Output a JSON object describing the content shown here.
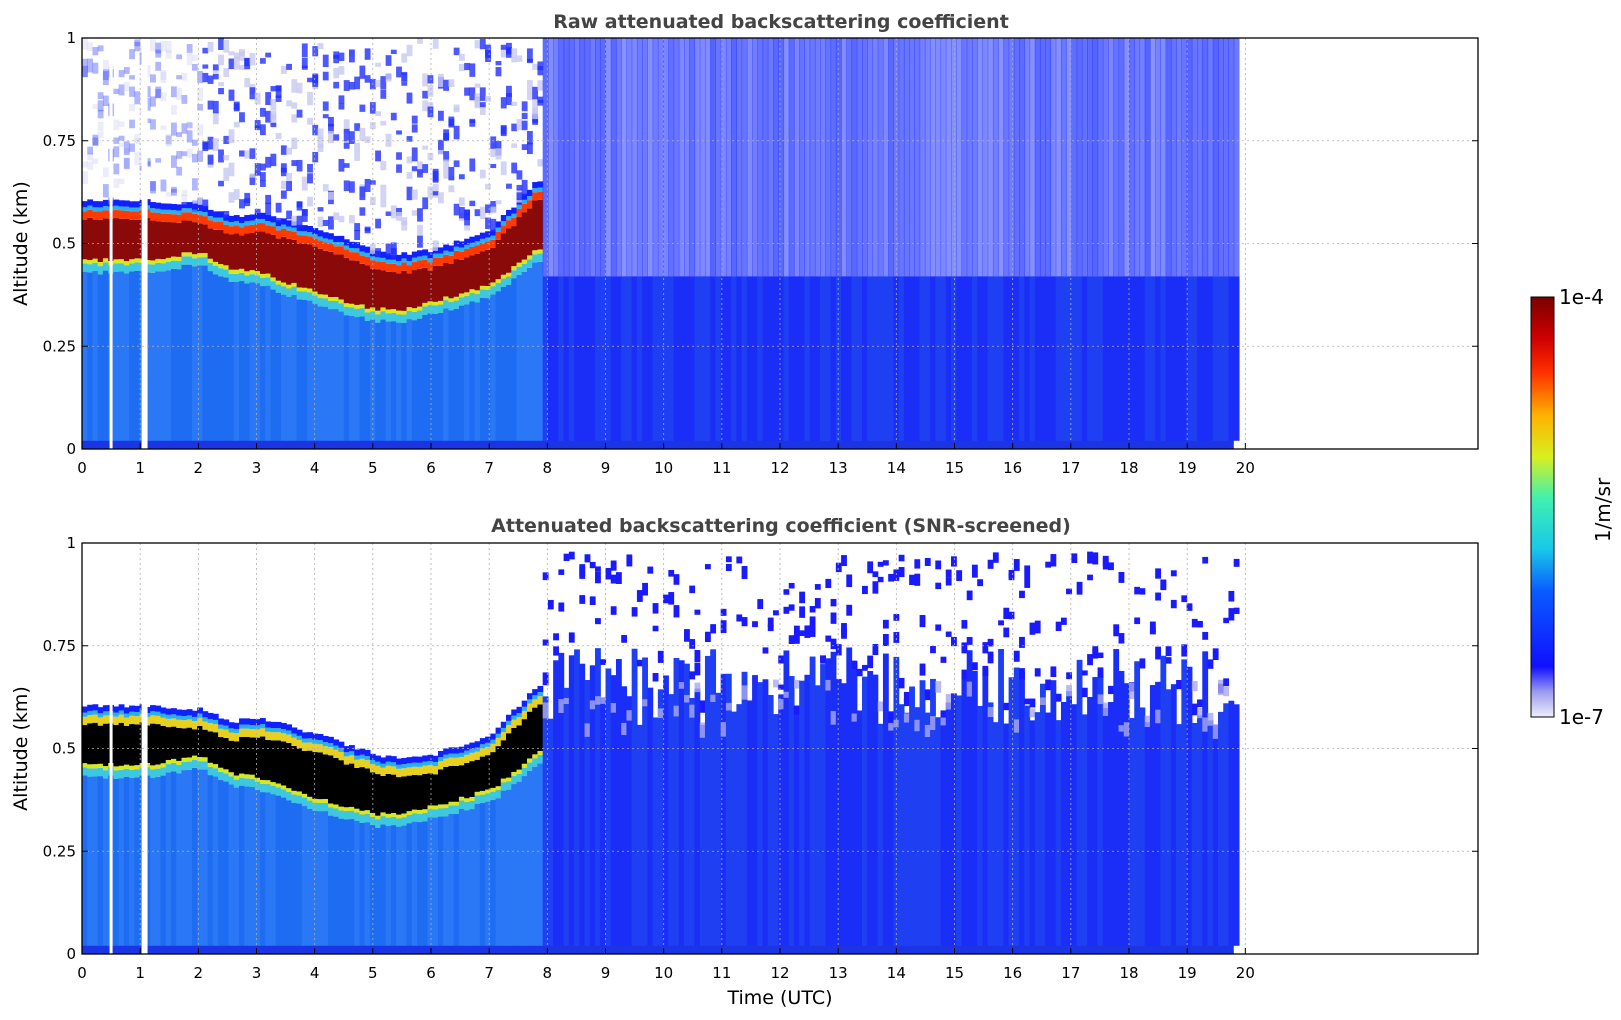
{
  "chart_data": [
    {
      "type": "heatmap",
      "title": "Raw attenuated backscattering coefficient",
      "xlabel": "",
      "ylabel": "Altitude (km)",
      "xlim": [
        0,
        24
      ],
      "ylim": [
        0,
        1
      ],
      "x_ticks": [
        "0",
        "1",
        "2",
        "3",
        "4",
        "5",
        "6",
        "7",
        "8",
        "9",
        "10",
        "11",
        "12",
        "13",
        "14",
        "15",
        "16",
        "17",
        "18",
        "19",
        "20"
      ],
      "y_ticks": [
        "0",
        "0.25",
        "0.5",
        "0.75",
        "1"
      ],
      "grid": true,
      "data_end_time": 19.8,
      "cloud_layer": {
        "times": [
          0,
          1,
          2,
          2.5,
          3,
          4,
          5,
          5.5,
          6,
          7,
          7.8
        ],
        "base_km": [
          0.43,
          0.43,
          0.45,
          0.41,
          0.4,
          0.35,
          0.31,
          0.31,
          0.33,
          0.37,
          0.46
        ],
        "top_km": [
          0.59,
          0.59,
          0.58,
          0.55,
          0.56,
          0.52,
          0.47,
          0.46,
          0.47,
          0.52,
          0.64
        ]
      },
      "gaps_utc": [
        0.5,
        1.05
      ],
      "screened": false
    },
    {
      "type": "heatmap",
      "title": "Attenuated backscattering coefficient (SNR-screened)",
      "xlabel": "Time (UTC)",
      "ylabel": "Altitude (km)",
      "xlim": [
        0,
        24
      ],
      "ylim": [
        0,
        1
      ],
      "x_ticks": [
        "0",
        "1",
        "2",
        "3",
        "4",
        "5",
        "6",
        "7",
        "8",
        "9",
        "10",
        "11",
        "12",
        "13",
        "14",
        "15",
        "16",
        "17",
        "18",
        "19",
        "20"
      ],
      "y_ticks": [
        "0",
        "0.25",
        "0.5",
        "0.75",
        "1"
      ],
      "grid": true,
      "data_end_time": 19.8,
      "cloud_layer": {
        "times": [
          0,
          1,
          2,
          2.5,
          3,
          4,
          5,
          5.5,
          6,
          7,
          7.8
        ],
        "base_km": [
          0.43,
          0.43,
          0.45,
          0.41,
          0.4,
          0.35,
          0.31,
          0.31,
          0.33,
          0.37,
          0.46
        ],
        "top_km": [
          0.59,
          0.59,
          0.58,
          0.55,
          0.56,
          0.52,
          0.47,
          0.46,
          0.47,
          0.52,
          0.64
        ]
      },
      "gaps_utc": [
        0.5,
        1.05
      ],
      "screened": true
    }
  ],
  "colorbar": {
    "label": "1/m/sr",
    "max_label": "1e-4",
    "min_label": "1e-7",
    "colormap": "jet",
    "saturated_color": "#000000"
  }
}
